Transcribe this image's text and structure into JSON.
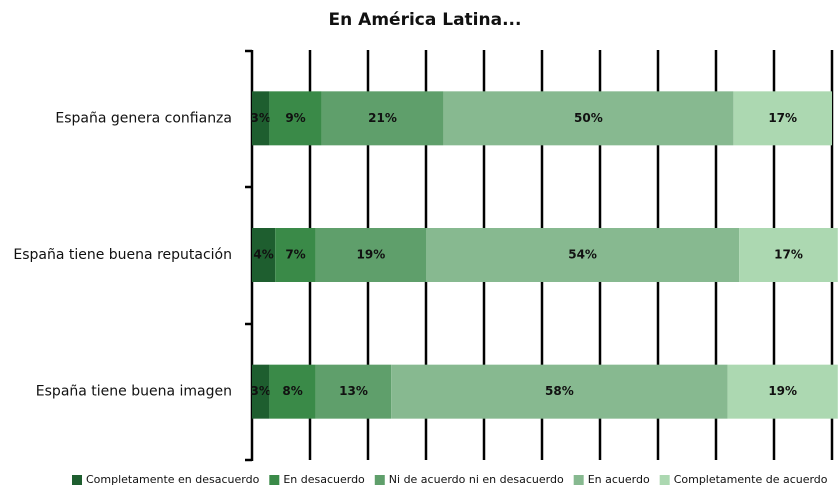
{
  "chart_data": {
    "type": "stacked-bar-horizontal",
    "title": "En América Latina...",
    "categories": [
      "España genera confianza",
      "España tiene buena reputación",
      "España tiene buena imagen"
    ],
    "series": [
      {
        "name": "Completamente en desacuerdo",
        "color": "#1e5e2f",
        "values": [
          3,
          4,
          3
        ],
        "value_labels": [
          "3%",
          "4%",
          "3%"
        ]
      },
      {
        "name": "En desacuerdo",
        "color": "#3a8a48",
        "values": [
          9,
          7,
          8
        ],
        "value_labels": [
          "9%",
          "7%",
          "8%"
        ]
      },
      {
        "name": "Ni de acuerdo ni en desacuerdo",
        "color": "#5f9f6b",
        "values": [
          21,
          19,
          13
        ],
        "value_labels": [
          "21%",
          "19%",
          "13%"
        ]
      },
      {
        "name": "En acuerdo",
        "color": "#87b990",
        "values": [
          50,
          54,
          58
        ],
        "value_labels": [
          "50%",
          "54%",
          "58%"
        ]
      },
      {
        "name": "Completamente de acuerdo",
        "color": "#acd8b1",
        "values": [
          17,
          17,
          19
        ],
        "value_labels": [
          "17%",
          "17%",
          "19%"
        ]
      }
    ],
    "xlim": [
      0,
      100
    ],
    "xticks": [
      0,
      10,
      20,
      30,
      40,
      50,
      60,
      70,
      80,
      90,
      100
    ],
    "grid": true,
    "legend": "bottom"
  }
}
